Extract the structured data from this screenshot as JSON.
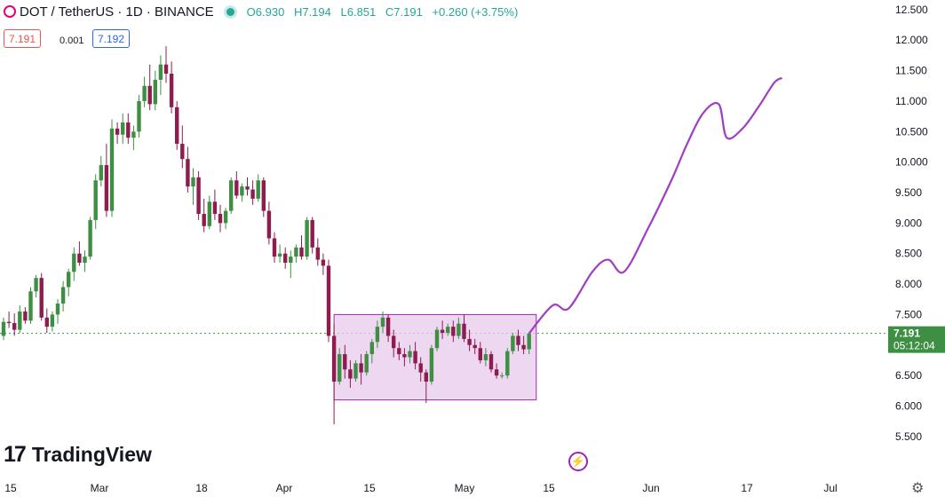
{
  "header": {
    "symbol": "DOT / TetherUS · 1D · BINANCE",
    "open": "O6.930",
    "high": "H7.194",
    "low": "L6.851",
    "close": "C7.191",
    "change": "+0.260 (+3.75%)",
    "sell_price": "7.191",
    "spread": "0.001",
    "buy_price": "7.192"
  },
  "brand": "TradingView",
  "price_label": {
    "price": "7.191",
    "countdown": "05:12:04"
  },
  "colors": {
    "up": "#26a69a",
    "down": "#ef5350",
    "candle_up": "#3e8f43",
    "candle_down": "#8e1c4f",
    "projection": "#a03ec2",
    "box_fill": "#e8c9ec",
    "box_stroke": "#9c27b0"
  },
  "chart_data": {
    "type": "candlestick",
    "ylim": [
      5.25,
      12.6
    ],
    "y_ticks": [
      "12.500",
      "12.000",
      "11.500",
      "11.000",
      "10.500",
      "10.000",
      "9.500",
      "9.000",
      "8.500",
      "8.000",
      "7.500",
      "7.000",
      "6.500",
      "6.000",
      "5.500"
    ],
    "x_ticks": [
      "15",
      "Mar",
      "18",
      "Apr",
      "15",
      "May",
      "15",
      "Jun",
      "17",
      "Jul"
    ],
    "current_price": 7.191,
    "range_box": {
      "from_day": 0,
      "to_day": 37,
      "top": 7.5,
      "bottom": 6.1
    },
    "candles_before_range": [
      [
        7.15,
        7.45,
        7.08,
        7.38
      ],
      [
        7.38,
        7.55,
        7.28,
        7.36
      ],
      [
        7.36,
        7.52,
        7.15,
        7.25
      ],
      [
        7.25,
        7.65,
        7.2,
        7.55
      ],
      [
        7.55,
        7.62,
        7.35,
        7.4
      ],
      [
        7.4,
        7.95,
        7.35,
        7.88
      ],
      [
        7.88,
        8.15,
        7.78,
        8.1
      ],
      [
        8.1,
        8.18,
        7.4,
        7.45
      ],
      [
        7.45,
        7.6,
        7.2,
        7.3
      ],
      [
        7.3,
        7.55,
        7.22,
        7.5
      ],
      [
        7.5,
        7.75,
        7.35,
        7.68
      ],
      [
        7.68,
        8.05,
        7.55,
        7.95
      ],
      [
        7.95,
        8.25,
        7.8,
        8.2
      ],
      [
        8.2,
        8.6,
        8.05,
        8.5
      ],
      [
        8.5,
        8.7,
        8.3,
        8.35
      ],
      [
        8.35,
        8.55,
        8.2,
        8.45
      ],
      [
        8.45,
        9.1,
        8.4,
        9.05
      ],
      [
        9.05,
        9.8,
        8.9,
        9.7
      ],
      [
        9.7,
        10.1,
        9.6,
        9.95
      ],
      [
        9.95,
        10.3,
        9.1,
        9.2
      ],
      [
        9.2,
        10.7,
        9.1,
        10.55
      ],
      [
        10.55,
        10.65,
        10.3,
        10.45
      ],
      [
        10.45,
        10.8,
        10.3,
        10.65
      ],
      [
        10.65,
        10.8,
        10.3,
        10.4
      ],
      [
        10.4,
        10.6,
        10.2,
        10.5
      ],
      [
        10.5,
        11.1,
        10.4,
        11.0
      ],
      [
        11.0,
        11.4,
        10.9,
        11.25
      ],
      [
        11.25,
        11.6,
        10.85,
        10.95
      ],
      [
        10.95,
        11.5,
        10.85,
        11.35
      ],
      [
        11.35,
        11.75,
        11.1,
        11.6
      ],
      [
        11.6,
        11.9,
        11.3,
        11.45
      ],
      [
        11.45,
        11.65,
        10.8,
        10.9
      ],
      [
        10.9,
        11.0,
        10.2,
        10.3
      ],
      [
        10.3,
        10.6,
        9.9,
        10.05
      ],
      [
        10.05,
        10.25,
        9.5,
        9.6
      ],
      [
        9.6,
        9.9,
        9.3,
        9.75
      ],
      [
        9.75,
        9.85,
        9.05,
        9.15
      ],
      [
        9.15,
        9.4,
        8.85,
        8.95
      ],
      [
        8.95,
        9.45,
        8.9,
        9.35
      ],
      [
        9.35,
        9.55,
        9.05,
        9.15
      ],
      [
        9.15,
        9.3,
        8.85,
        9.0
      ],
      [
        9.0,
        9.25,
        8.9,
        9.2
      ],
      [
        9.2,
        9.75,
        9.15,
        9.7
      ],
      [
        9.7,
        9.85,
        9.4,
        9.45
      ],
      [
        9.45,
        9.65,
        9.35,
        9.6
      ],
      [
        9.6,
        9.75,
        9.45,
        9.55
      ],
      [
        9.55,
        9.7,
        9.3,
        9.4
      ],
      [
        9.4,
        9.8,
        9.35,
        9.7
      ],
      [
        9.7,
        9.75,
        9.1,
        9.2
      ],
      [
        9.2,
        9.35,
        8.65,
        8.75
      ],
      [
        8.75,
        8.85,
        8.35,
        8.45
      ],
      [
        8.45,
        8.65,
        8.35,
        8.5
      ],
      [
        8.5,
        8.6,
        8.25,
        8.35
      ],
      [
        8.35,
        8.55,
        8.1,
        8.45
      ],
      [
        8.45,
        8.65,
        8.35,
        8.6
      ],
      [
        8.6,
        8.8,
        8.4,
        8.45
      ],
      [
        8.45,
        9.1,
        8.4,
        9.05
      ],
      [
        9.05,
        9.1,
        8.5,
        8.6
      ],
      [
        8.6,
        8.75,
        8.3,
        8.4
      ],
      [
        8.4,
        8.5,
        8.15,
        8.3
      ],
      [
        8.3,
        8.4,
        7.05,
        7.15
      ],
      [
        7.15,
        7.35,
        5.7,
        6.4
      ]
    ],
    "candles_in_range": [
      [
        6.4,
        6.95,
        6.35,
        6.85
      ],
      [
        6.85,
        7.0,
        6.45,
        6.6
      ],
      [
        6.6,
        6.75,
        6.3,
        6.45
      ],
      [
        6.45,
        6.75,
        6.4,
        6.7
      ],
      [
        6.7,
        6.85,
        6.35,
        6.55
      ],
      [
        6.55,
        6.9,
        6.5,
        6.85
      ],
      [
        6.85,
        7.1,
        6.7,
        7.05
      ],
      [
        7.05,
        7.4,
        6.95,
        7.3
      ],
      [
        7.3,
        7.55,
        7.2,
        7.45
      ],
      [
        7.45,
        7.5,
        7.05,
        7.15
      ],
      [
        7.15,
        7.25,
        6.8,
        6.95
      ],
      [
        6.95,
        7.05,
        6.75,
        6.85
      ],
      [
        6.85,
        6.95,
        6.65,
        6.8
      ],
      [
        6.8,
        7.0,
        6.7,
        6.9
      ],
      [
        6.9,
        7.05,
        6.6,
        6.7
      ],
      [
        6.7,
        6.8,
        6.4,
        6.55
      ],
      [
        6.55,
        6.6,
        6.05,
        6.4
      ],
      [
        6.4,
        7.0,
        6.35,
        6.95
      ],
      [
        6.95,
        7.3,
        6.9,
        7.25
      ],
      [
        7.25,
        7.4,
        7.1,
        7.2
      ],
      [
        7.2,
        7.35,
        7.15,
        7.3
      ],
      [
        7.3,
        7.4,
        7.05,
        7.15
      ],
      [
        7.15,
        7.45,
        7.1,
        7.35
      ],
      [
        7.35,
        7.5,
        7.05,
        7.1
      ],
      [
        7.1,
        7.25,
        6.9,
        7.0
      ],
      [
        7.0,
        7.1,
        6.85,
        6.95
      ],
      [
        6.95,
        7.05,
        6.7,
        6.75
      ],
      [
        6.75,
        6.95,
        6.65,
        6.85
      ],
      [
        6.85,
        6.9,
        6.55,
        6.6
      ],
      [
        6.6,
        6.7,
        6.45,
        6.5
      ],
      [
        6.5,
        6.55,
        6.45,
        6.5
      ],
      [
        6.5,
        6.95,
        6.45,
        6.9
      ],
      [
        6.9,
        7.2,
        6.85,
        7.15
      ],
      [
        7.15,
        7.25,
        6.9,
        7.0
      ],
      [
        7.0,
        7.15,
        6.85,
        6.93
      ],
      [
        6.93,
        7.194,
        6.851,
        7.191
      ]
    ],
    "projection": [
      [
        0,
        7.191
      ],
      [
        3,
        7.65
      ],
      [
        5,
        7.6
      ],
      [
        8,
        8.2
      ],
      [
        10,
        8.4
      ],
      [
        12,
        8.2
      ],
      [
        15,
        8.9
      ],
      [
        18,
        9.7
      ],
      [
        20,
        10.3
      ],
      [
        22,
        10.8
      ],
      [
        24,
        10.95
      ],
      [
        25,
        10.4
      ],
      [
        27,
        10.55
      ],
      [
        29,
        10.9
      ],
      [
        31,
        11.3
      ],
      [
        32,
        11.38
      ]
    ]
  }
}
